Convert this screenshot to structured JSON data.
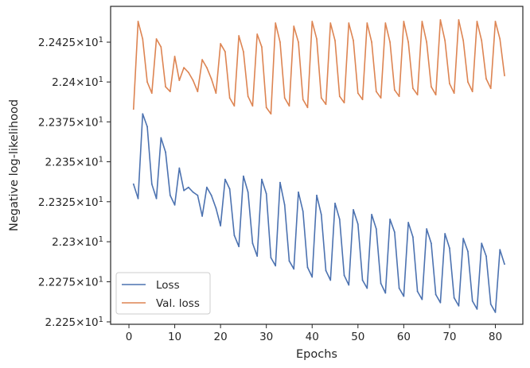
{
  "chart_data": {
    "type": "line",
    "xlabel": "Epochs",
    "ylabel": "Negative log-likelihood",
    "xlim": [
      -4,
      86
    ],
    "ylim": [
      22.2485,
      22.4475
    ],
    "y_scale": "log",
    "grid": false,
    "legend_position": "lower-left",
    "x_ticks": [
      0,
      10,
      20,
      30,
      40,
      50,
      60,
      70,
      80
    ],
    "y_ticks": [
      {
        "value": 22.25,
        "mantissa": "2.225"
      },
      {
        "value": 22.275,
        "mantissa": "2.2275"
      },
      {
        "value": 22.3,
        "mantissa": "2.23"
      },
      {
        "value": 22.325,
        "mantissa": "2.2325"
      },
      {
        "value": 22.35,
        "mantissa": "2.235"
      },
      {
        "value": 22.375,
        "mantissa": "2.2375"
      },
      {
        "value": 22.4,
        "mantissa": "2.24"
      },
      {
        "value": 22.425,
        "mantissa": "2.2425"
      }
    ],
    "y_tick_suffix": "×10",
    "y_tick_exponent": "1",
    "x": [
      1,
      2,
      3,
      4,
      5,
      6,
      7,
      8,
      9,
      10,
      11,
      12,
      13,
      14,
      15,
      16,
      17,
      18,
      19,
      20,
      21,
      22,
      23,
      24,
      25,
      26,
      27,
      28,
      29,
      30,
      31,
      32,
      33,
      34,
      35,
      36,
      37,
      38,
      39,
      40,
      41,
      42,
      43,
      44,
      45,
      46,
      47,
      48,
      49,
      50,
      51,
      52,
      53,
      54,
      55,
      56,
      57,
      58,
      59,
      60,
      61,
      62,
      63,
      64,
      65,
      66,
      67,
      68,
      69,
      70,
      71,
      72,
      73,
      74,
      75,
      76,
      77,
      78,
      79,
      80,
      81,
      82
    ],
    "series": [
      {
        "name": "Loss",
        "color": "#4c72b0",
        "values": [
          22.336,
          22.327,
          22.38,
          22.372,
          22.336,
          22.327,
          22.365,
          22.356,
          22.329,
          22.323,
          22.346,
          22.332,
          22.334,
          22.331,
          22.329,
          22.316,
          22.334,
          22.329,
          22.321,
          22.31,
          22.339,
          22.333,
          22.304,
          22.297,
          22.341,
          22.331,
          22.299,
          22.291,
          22.339,
          22.33,
          22.29,
          22.285,
          22.337,
          22.323,
          22.288,
          22.283,
          22.331,
          22.319,
          22.284,
          22.278,
          22.329,
          22.317,
          22.282,
          22.276,
          22.324,
          22.314,
          22.279,
          22.273,
          22.32,
          22.311,
          22.276,
          22.271,
          22.317,
          22.308,
          22.274,
          22.268,
          22.314,
          22.306,
          22.271,
          22.266,
          22.312,
          22.303,
          22.269,
          22.264,
          22.308,
          22.299,
          22.267,
          22.262,
          22.305,
          22.296,
          22.265,
          22.26,
          22.302,
          22.294,
          22.263,
          22.258,
          22.299,
          22.291,
          22.261,
          22.256,
          22.295,
          22.286
        ]
      },
      {
        "name": "Val. loss",
        "color": "#dd8452",
        "values": [
          22.383,
          22.438,
          22.427,
          22.4,
          22.393,
          22.427,
          22.422,
          22.397,
          22.394,
          22.416,
          22.401,
          22.409,
          22.406,
          22.401,
          22.394,
          22.414,
          22.409,
          22.402,
          22.393,
          22.424,
          22.419,
          22.39,
          22.385,
          22.429,
          22.419,
          22.391,
          22.385,
          22.43,
          22.422,
          22.384,
          22.38,
          22.437,
          22.425,
          22.39,
          22.385,
          22.435,
          22.425,
          22.389,
          22.384,
          22.438,
          22.427,
          22.39,
          22.386,
          22.437,
          22.426,
          22.391,
          22.387,
          22.437,
          22.426,
          22.393,
          22.389,
          22.437,
          22.425,
          22.394,
          22.39,
          22.437,
          22.425,
          22.395,
          22.391,
          22.438,
          22.425,
          22.396,
          22.392,
          22.438,
          22.425,
          22.397,
          22.392,
          22.439,
          22.426,
          22.399,
          22.393,
          22.439,
          22.426,
          22.4,
          22.394,
          22.438,
          22.426,
          22.402,
          22.396,
          22.438,
          22.427,
          22.404
        ]
      }
    ]
  }
}
